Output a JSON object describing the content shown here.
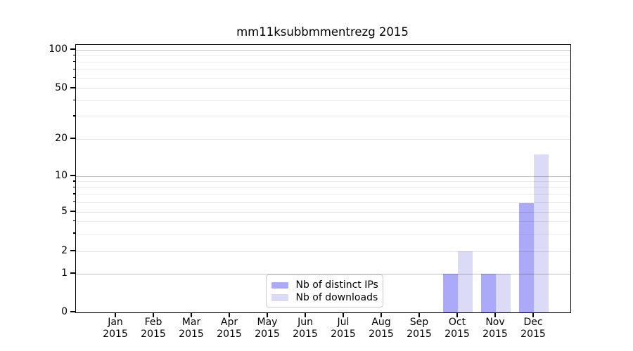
{
  "figure": {
    "title": "mm11ksubbmmentrezg 2015"
  },
  "chart_data": {
    "type": "bar",
    "title": "mm11ksubbmmentrezg 2015",
    "categories": [
      {
        "month": "Jan",
        "year": "2015"
      },
      {
        "month": "Feb",
        "year": "2015"
      },
      {
        "month": "Mar",
        "year": "2015"
      },
      {
        "month": "Apr",
        "year": "2015"
      },
      {
        "month": "May",
        "year": "2015"
      },
      {
        "month": "Jun",
        "year": "2015"
      },
      {
        "month": "Jul",
        "year": "2015"
      },
      {
        "month": "Aug",
        "year": "2015"
      },
      {
        "month": "Sep",
        "year": "2015"
      },
      {
        "month": "Oct",
        "year": "2015"
      },
      {
        "month": "Nov",
        "year": "2015"
      },
      {
        "month": "Dec",
        "year": "2015"
      }
    ],
    "series": [
      {
        "name": "Nb of distinct IPs",
        "color": "#aaaaf8",
        "values": [
          0,
          0,
          0,
          0,
          0,
          0,
          0,
          0,
          0,
          1,
          1,
          6
        ]
      },
      {
        "name": "Nb of downloads",
        "color": "#dbdbf8",
        "values": [
          0,
          0,
          0,
          0,
          0,
          0,
          0,
          0,
          0,
          2,
          1,
          15
        ]
      }
    ],
    "y_axis": {
      "scale": "symlog",
      "major_ticks": [
        0,
        1,
        2,
        5,
        10,
        20,
        50,
        100
      ],
      "power_ticks": [
        1,
        10,
        100
      ],
      "minor_ticks": [
        3,
        4,
        6,
        7,
        8,
        9,
        30,
        40,
        60,
        70,
        80,
        90
      ],
      "tick_labels": [
        "0",
        "1",
        "2",
        "5",
        "10",
        "20",
        "50",
        "100"
      ]
    },
    "legend": {
      "entries": [
        "Nb of distinct IPs",
        "Nb of downloads"
      ],
      "position": "lower center"
    },
    "grid": true,
    "background": "#ffffff"
  }
}
